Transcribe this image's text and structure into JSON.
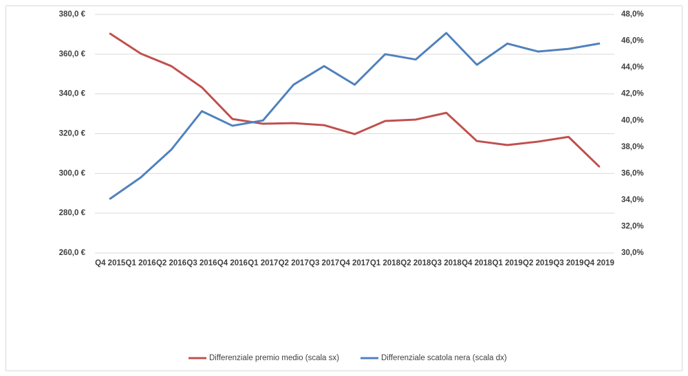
{
  "chart_data": {
    "type": "line",
    "categories": [
      "Q4 2015",
      "Q1 2016",
      "Q2 2016",
      "Q3 2016",
      "Q4 2016",
      "Q1 2017",
      "Q2 2017",
      "Q3 2017",
      "Q4 2017",
      "Q1 2018",
      "Q2 2018",
      "Q3 2018",
      "Q4 2018",
      "Q1 2019",
      "Q2 2019",
      "Q3 2019",
      "Q4 2019"
    ],
    "series": [
      {
        "name": "Differenziale premio medio (scala sx)",
        "color": "#c0504d",
        "axis": "y",
        "values": [
          370.3,
          360.3,
          354,
          343.3,
          327.4,
          325,
          325.3,
          324.3,
          319.8,
          326.4,
          327.1,
          330.5,
          316.3,
          314.3,
          316,
          318.4,
          303.5
        ]
      },
      {
        "name": "Differenziale scatola nera (scala dx)",
        "color": "#4f81bd",
        "axis": "y2",
        "values": [
          34.1,
          35.7,
          37.8,
          40.7,
          39.6,
          40.0,
          42.7,
          44.1,
          42.7,
          45.0,
          44.6,
          46.6,
          44.2,
          45.8,
          45.2,
          45.4,
          45.8
        ]
      }
    ],
    "ylim": [
      260,
      380
    ],
    "yticks": [
      {
        "value": 260,
        "label": "260,0 €"
      },
      {
        "value": 280,
        "label": "280,0 €"
      },
      {
        "value": 300,
        "label": "300,0 €"
      },
      {
        "value": 320,
        "label": "320,0 €"
      },
      {
        "value": 340,
        "label": "340,0 €"
      },
      {
        "value": 360,
        "label": "360,0 €"
      },
      {
        "value": 380,
        "label": "380,0 €"
      }
    ],
    "y2lim": [
      30,
      48
    ],
    "y2ticks": [
      {
        "value": 30,
        "label": "30,0%"
      },
      {
        "value": 32,
        "label": "32,0%"
      },
      {
        "value": 34,
        "label": "34,0%"
      },
      {
        "value": 36,
        "label": "36,0%"
      },
      {
        "value": 38,
        "label": "38,0%"
      },
      {
        "value": 40,
        "label": "40,0%"
      },
      {
        "value": 42,
        "label": "42,0%"
      },
      {
        "value": 44,
        "label": "44,0%"
      },
      {
        "value": 46,
        "label": "46,0%"
      },
      {
        "value": 48,
        "label": "48,0%"
      }
    ],
    "grid": true,
    "legend": "bottom"
  }
}
